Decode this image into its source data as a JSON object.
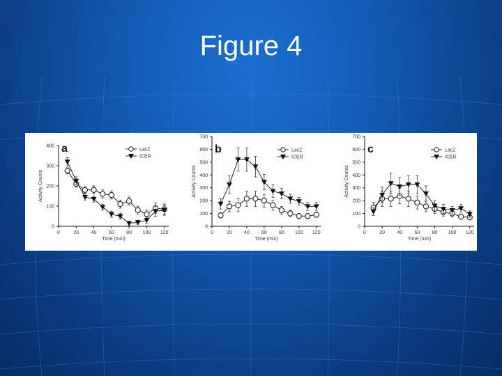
{
  "slide": {
    "title": "Figure 4",
    "colors": {
      "background": "#135bb3",
      "title": "#ffffff",
      "panel": "#ffffff"
    }
  },
  "chart_data": [
    {
      "type": "line",
      "panel_label": "a",
      "xlabel": "Time (min)",
      "ylabel": "Activity Counts",
      "xlim": [
        0,
        125
      ],
      "ylim": [
        0,
        400
      ],
      "xticks": [
        0,
        20,
        40,
        60,
        80,
        100,
        120
      ],
      "yticks": [
        0,
        100,
        200,
        300,
        400
      ],
      "series": [
        {
          "name": "LacZ",
          "marker": "circle-open",
          "x": [
            10,
            20,
            30,
            40,
            50,
            60,
            70,
            80,
            90,
            100,
            110,
            120
          ],
          "y": [
            275,
            210,
            180,
            180,
            160,
            155,
            110,
            125,
            80,
            60,
            90,
            85
          ],
          "err": [
            15,
            15,
            15,
            20,
            20,
            20,
            20,
            20,
            20,
            20,
            25,
            25
          ]
        },
        {
          "name": "ICER",
          "marker": "triangle-down-filled",
          "x": [
            10,
            20,
            30,
            40,
            50,
            60,
            70,
            80,
            90,
            100,
            110,
            120
          ],
          "y": [
            320,
            225,
            145,
            135,
            95,
            60,
            50,
            15,
            20,
            30,
            75,
            80
          ],
          "err": [
            20,
            20,
            15,
            15,
            15,
            15,
            15,
            10,
            10,
            15,
            25,
            25
          ]
        }
      ]
    },
    {
      "type": "line",
      "panel_label": "b",
      "xlabel": "Time (min)",
      "ylabel": "Activity Counts",
      "xlim": [
        0,
        125
      ],
      "ylim": [
        0,
        700
      ],
      "xticks": [
        0,
        20,
        40,
        60,
        80,
        100,
        120
      ],
      "yticks": [
        0,
        100,
        200,
        300,
        400,
        500,
        600,
        700
      ],
      "series": [
        {
          "name": "LacZ",
          "marker": "circle-open",
          "x": [
            10,
            20,
            30,
            40,
            50,
            60,
            70,
            80,
            90,
            100,
            110,
            120
          ],
          "y": [
            85,
            155,
            165,
            215,
            215,
            200,
            165,
            125,
            100,
            80,
            80,
            90
          ],
          "err": [
            20,
            40,
            50,
            60,
            60,
            50,
            40,
            30,
            25,
            20,
            20,
            20
          ]
        },
        {
          "name": "ICER",
          "marker": "triangle-down-filled",
          "x": [
            10,
            20,
            30,
            40,
            50,
            60,
            70,
            80,
            90,
            100,
            110,
            120
          ],
          "y": [
            175,
            325,
            520,
            520,
            465,
            345,
            275,
            255,
            215,
            195,
            155,
            155
          ],
          "err": [
            40,
            70,
            90,
            90,
            80,
            60,
            50,
            40,
            35,
            30,
            30,
            30
          ]
        }
      ]
    },
    {
      "type": "line",
      "panel_label": "c",
      "xlabel": "Time (min)",
      "ylabel": "Activity Counts",
      "xlim": [
        0,
        125
      ],
      "ylim": [
        0,
        700
      ],
      "xticks": [
        0,
        20,
        40,
        60,
        80,
        100,
        120
      ],
      "yticks": [
        0,
        100,
        200,
        300,
        400,
        500,
        600,
        700
      ],
      "series": [
        {
          "name": "LacZ",
          "marker": "circle-open",
          "x": [
            10,
            20,
            30,
            40,
            50,
            60,
            70,
            80,
            90,
            100,
            110,
            120
          ],
          "y": [
            145,
            215,
            215,
            235,
            215,
            185,
            155,
            135,
            110,
            100,
            75,
            70
          ],
          "err": [
            40,
            60,
            60,
            60,
            60,
            50,
            40,
            35,
            30,
            25,
            20,
            20
          ]
        },
        {
          "name": "ICER",
          "marker": "triangle-down-filled",
          "x": [
            10,
            20,
            30,
            40,
            50,
            60,
            70,
            80,
            90,
            100,
            110,
            120
          ],
          "y": [
            115,
            245,
            335,
            310,
            325,
            325,
            255,
            160,
            135,
            125,
            140,
            95
          ],
          "err": [
            30,
            60,
            80,
            70,
            70,
            70,
            60,
            40,
            35,
            30,
            30,
            25
          ]
        }
      ]
    }
  ]
}
